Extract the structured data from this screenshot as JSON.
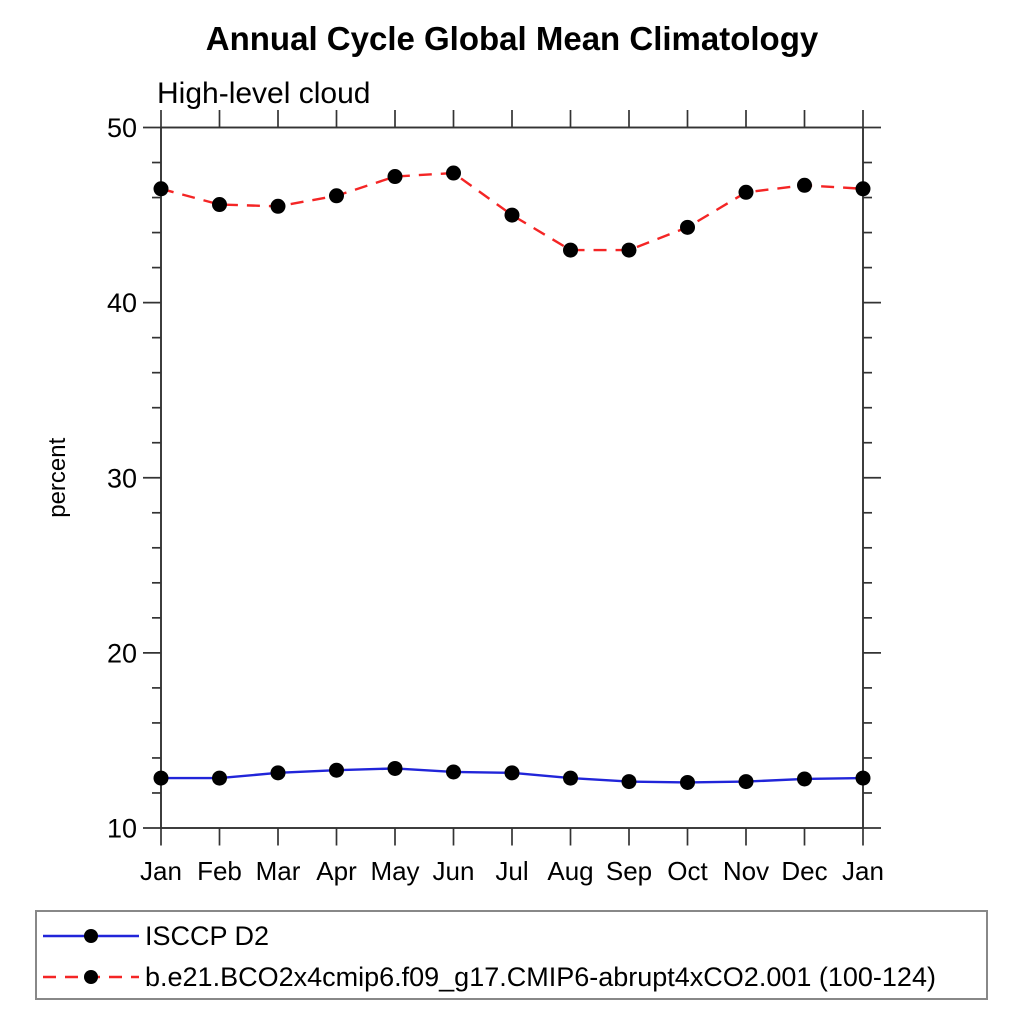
{
  "page": {
    "title": "Annual Cycle Global Mean Climatology",
    "subtitle": "High-level cloud"
  },
  "chart_data": {
    "type": "line",
    "title": "Annual Cycle Global Mean Climatology",
    "subtitle": "High-level cloud",
    "xlabel": "",
    "ylabel": "percent",
    "categories": [
      "Jan",
      "Feb",
      "Mar",
      "Apr",
      "May",
      "Jun",
      "Jul",
      "Aug",
      "Sep",
      "Oct",
      "Nov",
      "Dec",
      "Jan"
    ],
    "ylim": [
      10,
      50
    ],
    "y_major_ticks": [
      10,
      20,
      30,
      40,
      50
    ],
    "y_minor_step": 2,
    "grid": false,
    "legend_position": "bottom-left-box",
    "marker_color": "#000000",
    "axis_color": "#333333",
    "series": [
      {
        "name": "ISCCP D2",
        "color": "#2125d9",
        "style": "solid",
        "marker": "filled-circle",
        "values": [
          12.85,
          12.85,
          13.15,
          13.3,
          13.4,
          13.2,
          13.15,
          12.85,
          12.65,
          12.6,
          12.65,
          12.8,
          12.85
        ]
      },
      {
        "name": "b.e21.BCO2x4cmip6.f09_g17.CMIP6-abrupt4xCO2.001 (100-124)",
        "color": "#f42525",
        "style": "dashed",
        "marker": "filled-circle",
        "values": [
          46.5,
          45.6,
          45.5,
          46.1,
          47.2,
          47.4,
          45.0,
          43.0,
          43.0,
          44.3,
          46.3,
          46.7,
          46.5
        ]
      }
    ]
  },
  "legend": {
    "items": [
      {
        "label": "ISCCP D2"
      },
      {
        "label": "b.e21.BCO2x4cmip6.f09_g17.CMIP6-abrupt4xCO2.001 (100-124)"
      }
    ]
  }
}
